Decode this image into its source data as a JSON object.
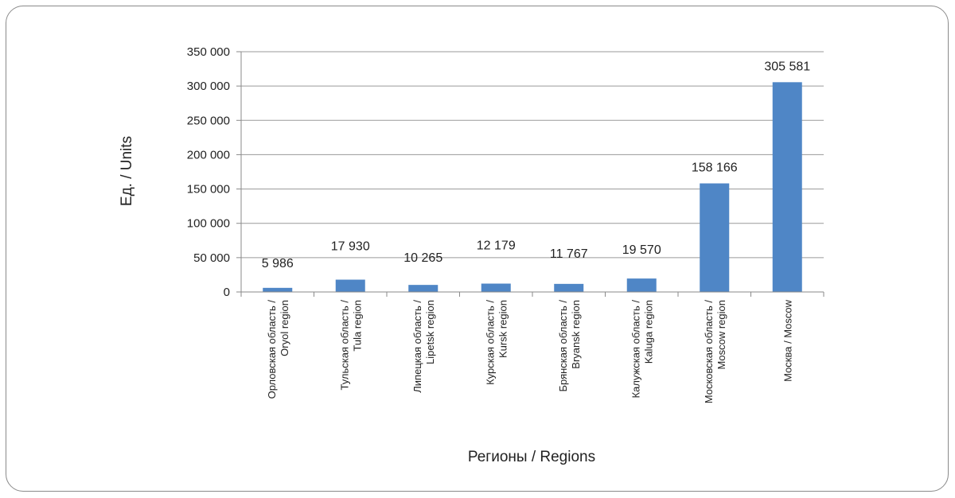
{
  "chart_data": {
    "type": "bar",
    "title": "",
    "xlabel": "Регионы / Regions",
    "ylabel": "Ед. / Units",
    "ylim": [
      0,
      350000
    ],
    "yticks": [
      0,
      50000,
      100000,
      150000,
      200000,
      250000,
      300000,
      350000
    ],
    "ytick_labels": [
      "0",
      "50 000",
      "100 000",
      "150 000",
      "200 000",
      "250 000",
      "300 000",
      "350 000"
    ],
    "grid": true,
    "bar_color": "#4f86c6",
    "categories": [
      [
        "Орловская область /",
        "Oryol region"
      ],
      [
        "Тульская область /",
        "Tula region"
      ],
      [
        "Липецкая область /",
        "Lipetsk region"
      ],
      [
        "Курская область /",
        "Kursk region"
      ],
      [
        "Брянская область /",
        "Bryansk region"
      ],
      [
        "Калужская область /",
        "Kaluga region"
      ],
      [
        "Московская область /",
        "Moscow region"
      ],
      [
        "Москва / Moscow"
      ]
    ],
    "values": [
      5986,
      17930,
      10265,
      12179,
      11767,
      19570,
      158166,
      305581
    ],
    "value_labels": [
      "5 986",
      "17 930",
      "10 265",
      "12 179",
      "11 767",
      "19 570",
      "158 166",
      "305 581"
    ]
  }
}
